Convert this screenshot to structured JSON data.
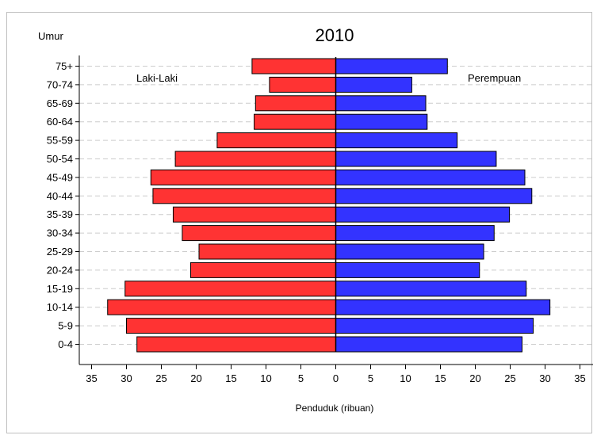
{
  "chart_data": {
    "type": "bar",
    "orientation": "horizontal",
    "title": "2010",
    "ylabel": "Umur",
    "xlabel": "Penduduk (ribuan)",
    "categories": [
      "75+",
      "70-74",
      "65-69",
      "60-64",
      "55-59",
      "50-54",
      "45-49",
      "40-44",
      "35-39",
      "30-34",
      "25-29",
      "20-24",
      "15-19",
      "10-14",
      "5-9",
      "0-4"
    ],
    "series": [
      {
        "name": "Laki-Laki",
        "color": "#ff3333",
        "values": [
          12,
          9.5,
          11.5,
          11.7,
          17,
          23,
          26.5,
          26.2,
          23.3,
          22,
          19.6,
          20.8,
          30.2,
          32.7,
          30,
          28.5
        ]
      },
      {
        "name": "Perempuan",
        "color": "#3333ff",
        "values": [
          16,
          10.9,
          12.9,
          13.1,
          17.4,
          23,
          27.1,
          28.1,
          24.9,
          22.7,
          21.2,
          20.6,
          27.3,
          30.7,
          28.3,
          26.7
        ]
      }
    ],
    "xlim": [
      -35,
      35
    ],
    "xticks": [
      -35,
      -30,
      -25,
      -20,
      -15,
      -10,
      -5,
      0,
      5,
      10,
      15,
      20,
      25,
      30,
      35
    ],
    "xtick_labels": [
      "35",
      "30",
      "25",
      "20",
      "15",
      "10",
      "5",
      "0",
      "5",
      "10",
      "15",
      "20",
      "25",
      "30",
      "35"
    ],
    "grid": "horizontal dashed",
    "legend": "series names printed at top-left and top-right inside plot"
  }
}
